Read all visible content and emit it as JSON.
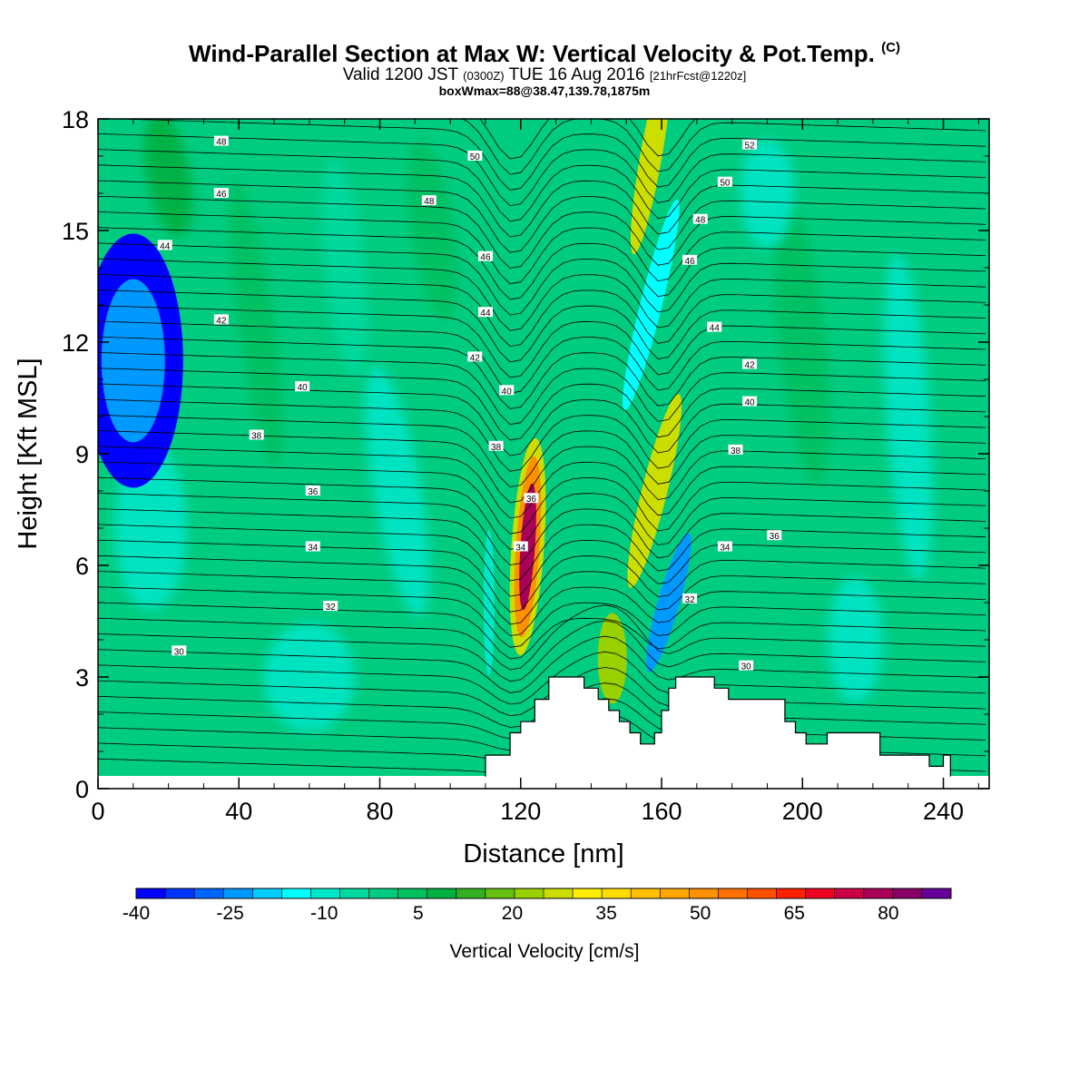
{
  "header": {
    "title": "Wind-Parallel Section at Max W: Vertical Velocity & Pot.Temp.",
    "copyright": "(C)",
    "subtitle_valid": "Valid 1200 JST",
    "subtitle_utc": "(0300Z)",
    "subtitle_date": "TUE 16 Aug 2016",
    "subtitle_fcst": "[21hrFcst@1220z]",
    "subtitle_box": "boxWmax=88@38.47,139.78,1875m"
  },
  "chart_data": {
    "type": "heatmap",
    "xlabel": "Distance [nm]",
    "ylabel": "Height [Kft MSL]",
    "xlim": [
      0,
      253
    ],
    "ylim": [
      0,
      18
    ],
    "x_ticks": [
      0,
      40,
      80,
      120,
      160,
      200,
      240
    ],
    "y_ticks": [
      0,
      3,
      6,
      9,
      12,
      15,
      18
    ],
    "colorbar": {
      "label": "Vertical Velocity [cm/s]",
      "range": [
        -40,
        90
      ],
      "step": 5,
      "tick_values": [
        -40,
        -25,
        -10,
        5,
        20,
        35,
        50,
        65,
        80
      ],
      "tick_labels": [
        "-40",
        "-25",
        "-10",
        "5",
        "20",
        "35",
        "50",
        "65",
        "80"
      ],
      "colors": [
        "#0000ff",
        "#0033ff",
        "#0066ff",
        "#0099ff",
        "#00ccff",
        "#00ffff",
        "#00e6c8",
        "#00d9a0",
        "#00cc80",
        "#00c060",
        "#00b040",
        "#33b020",
        "#66c010",
        "#99d000",
        "#ccdd00",
        "#ffee00",
        "#ffdd00",
        "#ffc000",
        "#ffa800",
        "#ff9000",
        "#ff7000",
        "#ff5000",
        "#ff2000",
        "#ee0022",
        "#cc0044",
        "#aa0055",
        "#880066",
        "#660099"
      ]
    },
    "vertical_velocity_features": [
      {
        "x": 122,
        "y": 6.5,
        "w_cm_s": 88
      },
      {
        "x": 157,
        "y": 17,
        "w_cm_s": 30
      },
      {
        "x": 158,
        "y": 8,
        "w_cm_s": 30
      },
      {
        "x": 146,
        "y": 3.5,
        "w_cm_s": 25
      },
      {
        "x": 10,
        "y": 11.5,
        "w_cm_s": -25
      },
      {
        "x": 162,
        "y": 5,
        "w_cm_s": -25
      },
      {
        "x": 157,
        "y": 13,
        "w_cm_s": -15
      }
    ],
    "isentrope_labels": [
      {
        "text": "48",
        "x": 35,
        "y": 17.4
      },
      {
        "text": "46",
        "x": 35,
        "y": 16.0
      },
      {
        "text": "44",
        "x": 19,
        "y": 14.6
      },
      {
        "text": "42",
        "x": 35,
        "y": 12.6
      },
      {
        "text": "40",
        "x": 58,
        "y": 10.8
      },
      {
        "text": "38",
        "x": 45,
        "y": 9.5
      },
      {
        "text": "36",
        "x": 61,
        "y": 8.0
      },
      {
        "text": "34",
        "x": 61,
        "y": 6.5
      },
      {
        "text": "32",
        "x": 66,
        "y": 4.9
      },
      {
        "text": "30",
        "x": 23,
        "y": 3.7
      },
      {
        "text": "50",
        "x": 107,
        "y": 17.0
      },
      {
        "text": "48",
        "x": 94,
        "y": 15.8
      },
      {
        "text": "46",
        "x": 110,
        "y": 14.3
      },
      {
        "text": "44",
        "x": 110,
        "y": 12.8
      },
      {
        "text": "42",
        "x": 107,
        "y": 11.6
      },
      {
        "text": "40",
        "x": 116,
        "y": 10.7
      },
      {
        "text": "38",
        "x": 113,
        "y": 9.2
      },
      {
        "text": "36",
        "x": 123,
        "y": 7.8
      },
      {
        "text": "34",
        "x": 120,
        "y": 6.5
      },
      {
        "text": "52",
        "x": 185,
        "y": 17.3
      },
      {
        "text": "50",
        "x": 178,
        "y": 16.3
      },
      {
        "text": "48",
        "x": 171,
        "y": 15.3
      },
      {
        "text": "46",
        "x": 168,
        "y": 14.2
      },
      {
        "text": "44",
        "x": 175,
        "y": 12.4
      },
      {
        "text": "42",
        "x": 185,
        "y": 11.4
      },
      {
        "text": "40",
        "x": 185,
        "y": 10.4
      },
      {
        "text": "38",
        "x": 181,
        "y": 9.1
      },
      {
        "text": "36",
        "x": 192,
        "y": 6.8
      },
      {
        "text": "34",
        "x": 178,
        "y": 6.5
      },
      {
        "text": "32",
        "x": 168,
        "y": 5.1
      },
      {
        "text": "30",
        "x": 184,
        "y": 3.3
      }
    ],
    "terrain_kft": [
      [
        0,
        0
      ],
      [
        106,
        0
      ],
      [
        107,
        0.3
      ],
      [
        110,
        0.3
      ],
      [
        110,
        0.9
      ],
      [
        117,
        0.9
      ],
      [
        117,
        1.5
      ],
      [
        120,
        1.5
      ],
      [
        120,
        1.8
      ],
      [
        124,
        1.8
      ],
      [
        124,
        2.4
      ],
      [
        128,
        2.4
      ],
      [
        128,
        3.0
      ],
      [
        138,
        3.0
      ],
      [
        138,
        2.7
      ],
      [
        142,
        2.7
      ],
      [
        142,
        2.4
      ],
      [
        145,
        2.4
      ],
      [
        145,
        2.1
      ],
      [
        148,
        2.1
      ],
      [
        148,
        1.8
      ],
      [
        151,
        1.8
      ],
      [
        151,
        1.5
      ],
      [
        154,
        1.5
      ],
      [
        154,
        1.2
      ],
      [
        158,
        1.2
      ],
      [
        158,
        1.5
      ],
      [
        160,
        1.5
      ],
      [
        160,
        2.1
      ],
      [
        162,
        2.1
      ],
      [
        162,
        2.7
      ],
      [
        164,
        2.7
      ],
      [
        164,
        3.0
      ],
      [
        175,
        3.0
      ],
      [
        175,
        2.7
      ],
      [
        179,
        2.7
      ],
      [
        179,
        2.4
      ],
      [
        195,
        2.4
      ],
      [
        195,
        1.8
      ],
      [
        198,
        1.8
      ],
      [
        198,
        1.5
      ],
      [
        201,
        1.5
      ],
      [
        201,
        1.2
      ],
      [
        207,
        1.2
      ],
      [
        207,
        1.5
      ],
      [
        222,
        1.5
      ],
      [
        222,
        0.9
      ],
      [
        236,
        0.9
      ],
      [
        236,
        0.6
      ],
      [
        240,
        0.6
      ],
      [
        240,
        0.9
      ],
      [
        242,
        0.9
      ],
      [
        242,
        0.3
      ],
      [
        253,
        0.3
      ],
      [
        253,
        0
      ]
    ]
  }
}
